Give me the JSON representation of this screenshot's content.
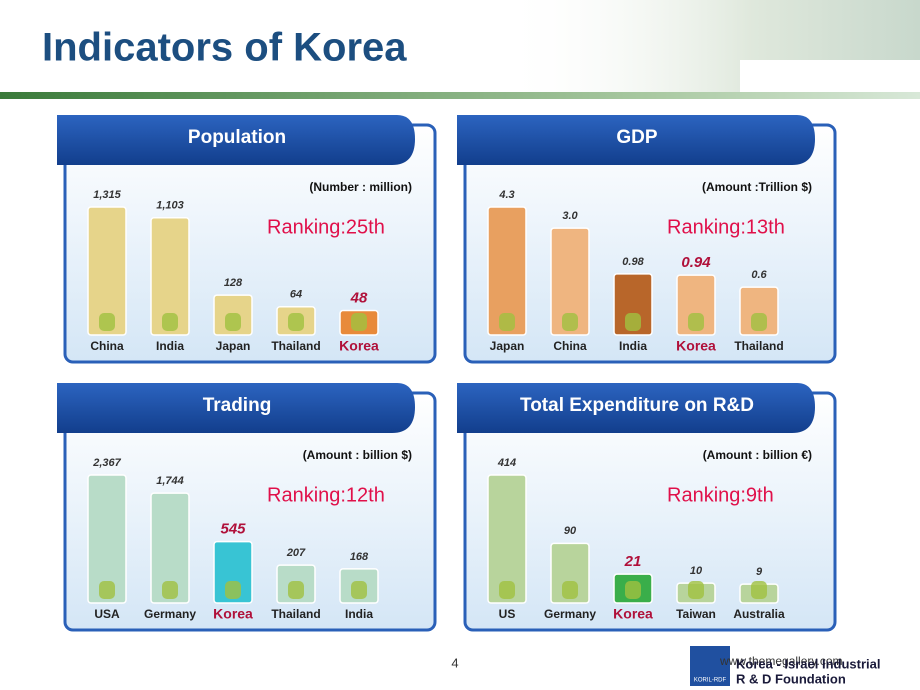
{
  "page": {
    "title": "Indicators of Korea",
    "page_number": "4",
    "footer_url": "www.themegallery.com",
    "org_line1": "Korea - Israel Industrial",
    "org_line2": "R & D Foundation",
    "org_logo": "KORIL-RDF"
  },
  "chart_data": [
    {
      "type": "bar",
      "title": "Population",
      "note": "(Number : million)",
      "annotation": "Ranking:25th",
      "categories": [
        "China",
        "India",
        "Japan",
        "Thailand",
        "Korea"
      ],
      "values": [
        1315,
        1103,
        128,
        64,
        48
      ],
      "value_labels": [
        "1,315",
        "1,103",
        "128",
        "64",
        "48"
      ],
      "colors": [
        "#e6d48a",
        "#e6d48a",
        "#e6d48a",
        "#e6d48a",
        "#e88a3a"
      ],
      "highlight_index": 4,
      "highlight_color": "#b0103a"
    },
    {
      "type": "bar",
      "title": "GDP",
      "note": "(Amount :Trillion $)",
      "annotation": "Ranking:13th",
      "categories": [
        "Japan",
        "China",
        "India",
        "Korea",
        "Thailand"
      ],
      "values": [
        4.3,
        3.0,
        0.98,
        0.94,
        0.6
      ],
      "value_labels": [
        "4.3",
        "3.0",
        "0.98",
        "0.94",
        "0.6"
      ],
      "colors": [
        "#e8a060",
        "#efb580",
        "#b8662a",
        "#efb580",
        "#efb580"
      ],
      "highlight_index": 3,
      "highlight_color": "#b0103a"
    },
    {
      "type": "bar",
      "title": "Trading",
      "note": "(Amount : billion $)",
      "annotation": "Ranking:12th",
      "categories": [
        "USA",
        "Germany",
        "Korea",
        "Thailand",
        "India"
      ],
      "values": [
        2367,
        1744,
        545,
        207,
        168
      ],
      "value_labels": [
        "2,367",
        "1,744",
        "545",
        "207",
        "168"
      ],
      "colors": [
        "#b8dcc8",
        "#b8dcc8",
        "#38c4d4",
        "#b8dcc8",
        "#b8dcc8"
      ],
      "highlight_index": 2,
      "highlight_color": "#b0103a"
    },
    {
      "type": "bar",
      "title": "Total Expenditure on R&D",
      "note": "(Amount : billion €)",
      "annotation": "Ranking:9th",
      "categories": [
        "US",
        "Germany",
        "Korea",
        "Taiwan",
        "Australia"
      ],
      "values": [
        414,
        90,
        21,
        10,
        9
      ],
      "value_labels": [
        "414",
        "90",
        "21",
        "10",
        "9"
      ],
      "colors": [
        "#b8d49c",
        "#b8d49c",
        "#3aae4a",
        "#b8d49c",
        "#b8d49c"
      ],
      "highlight_index": 2,
      "highlight_color": "#b0103a"
    }
  ]
}
